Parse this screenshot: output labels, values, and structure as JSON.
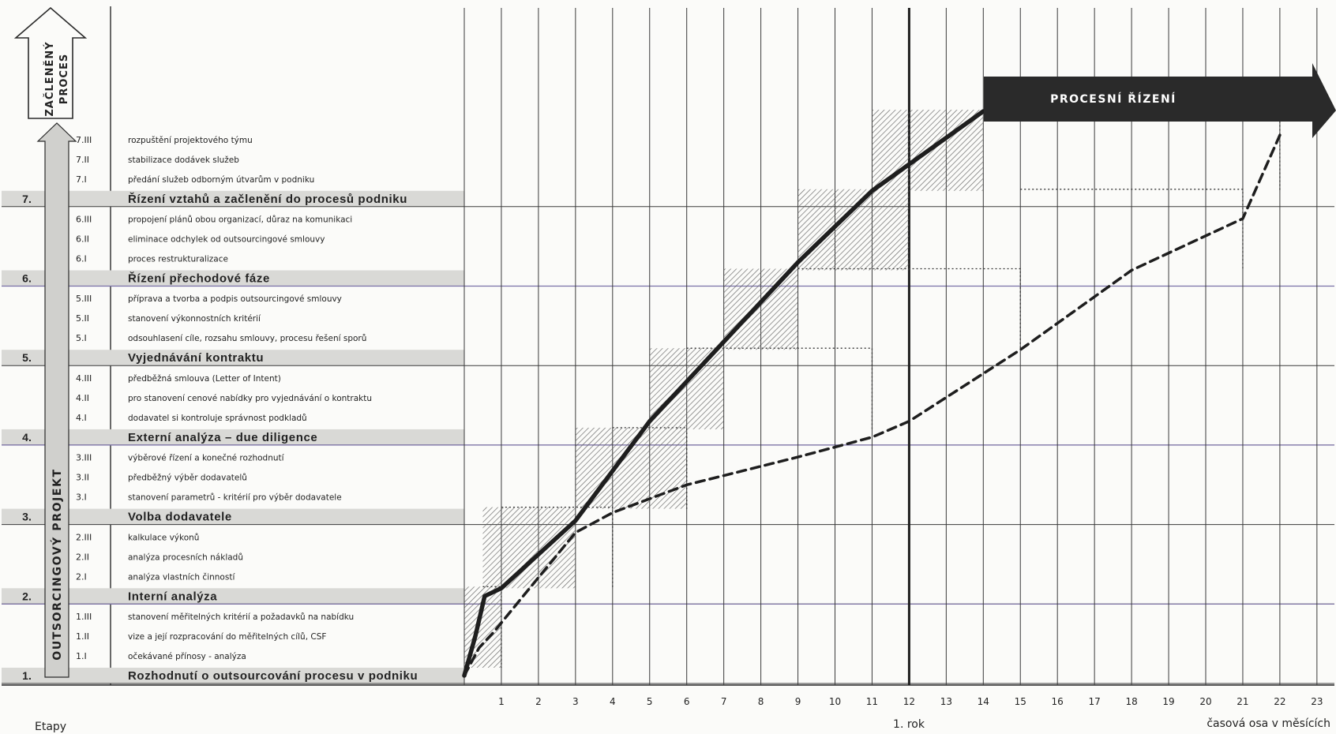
{
  "stages": [
    {
      "num": "1.",
      "title": "Rozhodnutí o outsourcování procesu v podniku",
      "subs": [
        {
          "code": "1.I",
          "text": "očekávané přínosy - analýza"
        },
        {
          "code": "1.II",
          "text": "vize a její rozpracování do měřitelných cílů, CSF"
        },
        {
          "code": "1.III",
          "text": "stanovení měřitelných kritérií a požadavků na nabídku"
        }
      ]
    },
    {
      "num": "2.",
      "title": "Interní analýza",
      "subs": [
        {
          "code": "2.I",
          "text": "analýza vlastních činností"
        },
        {
          "code": "2.II",
          "text": "analýza procesních nákladů"
        },
        {
          "code": "2.III",
          "text": "kalkulace výkonů"
        }
      ]
    },
    {
      "num": "3.",
      "title": "Volba dodavatele",
      "subs": [
        {
          "code": "3.I",
          "text": "stanovení parametrů - kritérií pro výběr dodavatele"
        },
        {
          "code": "3.II",
          "text": "předběžný výběr dodavatelů"
        },
        {
          "code": "3.III",
          "text": "výběrové řízení a konečné rozhodnutí"
        }
      ]
    },
    {
      "num": "4.",
      "title": "Externí analýza – due diligence",
      "subs": [
        {
          "code": "4.I",
          "text": "dodavatel si kontroluje správnost podkladů"
        },
        {
          "code": "4.II",
          "text": "pro stanovení cenové nabídky pro vyjednávání o kontraktu"
        },
        {
          "code": "4.III",
          "text": "předběžná smlouva (Letter of Intent)"
        }
      ]
    },
    {
      "num": "5.",
      "title": "Vyjednávání kontraktu",
      "subs": [
        {
          "code": "5.I",
          "text": "odsouhlasení cíle, rozsahu smlouvy, procesu řešení sporů"
        },
        {
          "code": "5.II",
          "text": "stanovení výkonnostních kritérií"
        },
        {
          "code": "5.III",
          "text": "příprava a tvorba a podpis outsourcingové smlouvy"
        }
      ]
    },
    {
      "num": "6.",
      "title": "Řízení přechodové fáze",
      "subs": [
        {
          "code": "6.I",
          "text": "proces restrukturalizace"
        },
        {
          "code": "6.II",
          "text": "eliminace odchylek od outsourcingové smlouvy"
        },
        {
          "code": "6.III",
          "text": "propojení plánů obou organizací, důraz na komunikaci"
        }
      ]
    },
    {
      "num": "7.",
      "title": "Řízení vztahů a začlenění do procesů podniku",
      "subs": [
        {
          "code": "7.I",
          "text": "předání služeb odborným útvarům v podniku"
        },
        {
          "code": "7.II",
          "text": "stabilizace dodávek služeb"
        },
        {
          "code": "7.III",
          "text": "rozpuštění projektového týmu"
        }
      ]
    }
  ],
  "labels": {
    "project_arrow": "OUTSORCINGOVÝ PROJEKT",
    "integrated_line1": "ZAČLENĚNÝ",
    "integrated_line2": "PROCES",
    "process_arrow": "PROCESNÍ ŘÍZENÍ",
    "stages_caption": "Etapy",
    "year_label": "1. rok",
    "time_axis_label": "časová osa v měsících"
  },
  "months": [
    "1",
    "2",
    "3",
    "4",
    "5",
    "6",
    "7",
    "8",
    "9",
    "10",
    "11",
    "12",
    "13",
    "14",
    "15",
    "16",
    "17",
    "18",
    "19",
    "20",
    "21",
    "22",
    "23"
  ],
  "timeline": {
    "month_range": [
      0,
      23
    ],
    "year_marker_month": 12,
    "hatched_blocks": [
      {
        "stage": 1,
        "start": 0,
        "end": 1
      },
      {
        "stage": 2,
        "start": 0.5,
        "end": 3
      },
      {
        "stage": 3,
        "start": 3,
        "end": 6
      },
      {
        "stage": 4,
        "start": 5,
        "end": 7
      },
      {
        "stage": 5,
        "start": 7,
        "end": 9
      },
      {
        "stage": 6,
        "start": 9,
        "end": 12
      },
      {
        "stage": 7,
        "start": 11,
        "end": 14
      }
    ],
    "dotted_blocks": [
      {
        "stage": 1,
        "start": 0.5,
        "end": 1
      },
      {
        "stage": 2,
        "start": 1,
        "end": 4
      },
      {
        "stage": 3,
        "start": 4,
        "end": 6
      },
      {
        "stage": 4,
        "start": 6,
        "end": 11
      },
      {
        "stage": 5,
        "start": 9,
        "end": 15
      },
      {
        "stage": 6,
        "start": 15,
        "end": 21
      },
      {
        "stage": 7,
        "start": 14,
        "end": 22
      }
    ],
    "solid_curve": [
      [
        0,
        0
      ],
      [
        0.3,
        0.5
      ],
      [
        0.55,
        1
      ],
      [
        1,
        1.1
      ],
      [
        3,
        1.95
      ],
      [
        5,
        3.2
      ],
      [
        7,
        4.2
      ],
      [
        9,
        5.2
      ],
      [
        11,
        6.1
      ],
      [
        14,
        7.1
      ]
    ],
    "dashed_curve": [
      [
        0,
        0
      ],
      [
        0.4,
        0.35
      ],
      [
        0.8,
        0.55
      ],
      [
        1.5,
        0.95
      ],
      [
        3,
        1.8
      ],
      [
        4,
        2.05
      ],
      [
        6,
        2.4
      ],
      [
        9,
        2.75
      ],
      [
        11,
        3
      ],
      [
        12,
        3.2
      ],
      [
        15,
        4.1
      ],
      [
        18,
        5.1
      ],
      [
        21,
        5.75
      ],
      [
        22,
        6.8
      ]
    ]
  },
  "colors": {
    "stage_band": "#d9d9d6",
    "dark": "#2a2a2a",
    "grid": "#3a3a3a",
    "hatch": "#555555",
    "accent_line": "#7a6fa8"
  }
}
